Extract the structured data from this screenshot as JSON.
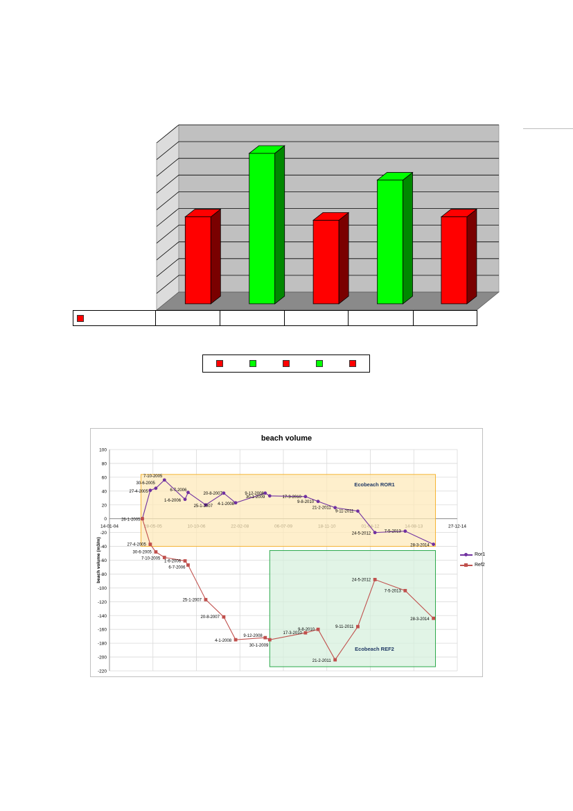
{
  "bar_chart": {
    "chart_data": {
      "type": "bar",
      "categories": [
        "",
        "",
        "",
        "",
        ""
      ],
      "values": [
        5.2,
        9.0,
        5.0,
        7.4,
        5.2
      ],
      "colors": [
        "#ff0000",
        "#00ff00",
        "#ff0000",
        "#00ff00",
        "#ff0000"
      ],
      "grid": true,
      "gridlines": 10
    }
  },
  "volume_chart": {
    "chart_data": {
      "type": "line",
      "title": "beach volume",
      "ylabel": "beach volume (m3/m)",
      "ylim": [
        -220,
        100
      ],
      "yticks": [
        100,
        80,
        60,
        40,
        20,
        0,
        -20,
        -40,
        -60,
        -80,
        -100,
        -120,
        -140,
        -160,
        -180,
        -200,
        -220
      ],
      "xlim": [
        "2004-01-14",
        "2014-12-27"
      ],
      "xtick_labels": [
        "14-01-04",
        "28-05-05",
        "10-10-06",
        "22-02-08",
        "06-07-09",
        "18-11-10",
        "01-04-12",
        "14-08-13",
        "27-12-14"
      ],
      "xtick_dates": [
        "2004-01-14",
        "2005-05-28",
        "2006-10-10",
        "2008-02-22",
        "2009-07-06",
        "2010-11-18",
        "2012-04-01",
        "2013-08-14",
        "2014-12-27"
      ],
      "legend_position": "right",
      "series": [
        {
          "name": "Ror1",
          "color": "#7030a0",
          "marker": "circle",
          "points": [
            {
              "x": "2005-01-26",
              "y": 0,
              "label": "26-1-2005"
            },
            {
              "x": "2005-04-27",
              "y": 41,
              "label": "27-4-2005"
            },
            {
              "x": "2005-06-30",
              "y": 44,
              "label": "30-6-2005"
            },
            {
              "x": "2005-10-07",
              "y": 56,
              "label": "7-10-2005"
            },
            {
              "x": "2006-06-01",
              "y": 28,
              "label": "1-6-2006"
            },
            {
              "x": "2006-07-06",
              "y": 38,
              "label": "6-7-2006"
            },
            {
              "x": "2007-01-25",
              "y": 20,
              "label": "25-1-2007"
            },
            {
              "x": "2007-08-20",
              "y": 37,
              "label": "20-8-2007"
            },
            {
              "x": "2008-01-04",
              "y": 23,
              "label": "4-1-2008"
            },
            {
              "x": "2008-12-09",
              "y": 37,
              "label": "9-12-2008"
            },
            {
              "x": "2009-01-30",
              "y": 33,
              "label": "30-1-2009"
            },
            {
              "x": "2010-03-17",
              "y": 32,
              "label": "17-3-2010"
            },
            {
              "x": "2010-08-09",
              "y": 25,
              "label": "9-8-2010"
            },
            {
              "x": "2011-02-21",
              "y": 16,
              "label": "21-2-2011"
            },
            {
              "x": "2011-11-09",
              "y": 11,
              "label": "9-11-2011"
            },
            {
              "x": "2012-05-24",
              "y": -20,
              "label": "24-5-2012"
            },
            {
              "x": "2013-05-07",
              "y": -18,
              "label": "7-5-2013"
            },
            {
              "x": "2014-03-28",
              "y": -37,
              "label": "28-3-2014"
            }
          ]
        },
        {
          "name": "Ref2",
          "color": "#c0504d",
          "marker": "square",
          "points": [
            {
              "x": "2005-01-26",
              "y": 0,
              "label": "26-1-2005"
            },
            {
              "x": "2005-04-27",
              "y": -37,
              "label": "27-4-2005"
            },
            {
              "x": "2005-06-30",
              "y": -48,
              "label": "30-6-2005"
            },
            {
              "x": "2005-10-07",
              "y": -56,
              "label": "7-10-2005"
            },
            {
              "x": "2006-06-01",
              "y": -61,
              "label": "1-6-2006"
            },
            {
              "x": "2006-07-06",
              "y": -67,
              "label": "6-7-2006"
            },
            {
              "x": "2007-01-25",
              "y": -117,
              "label": "25-1-2007"
            },
            {
              "x": "2007-08-20",
              "y": -142,
              "label": "20-8-2007"
            },
            {
              "x": "2008-01-04",
              "y": -175,
              "label": "4-1-2008"
            },
            {
              "x": "2008-12-09",
              "y": -172,
              "label": "9-12-2008"
            },
            {
              "x": "2009-01-30",
              "y": -175,
              "label": "30-1-2009"
            },
            {
              "x": "2010-03-17",
              "y": -165,
              "label": "17-3-2010"
            },
            {
              "x": "2010-08-09",
              "y": -160,
              "label": "9-8-2010"
            },
            {
              "x": "2011-02-21",
              "y": -204,
              "label": "21-2-2011"
            },
            {
              "x": "2011-11-09",
              "y": -156,
              "label": "9-11-2011"
            },
            {
              "x": "2012-05-24",
              "y": -88,
              "label": "24-5-2012"
            },
            {
              "x": "2013-05-07",
              "y": -104,
              "label": "7-5-2013"
            },
            {
              "x": "2014-03-28",
              "y": -144,
              "label": "28-3-2014"
            }
          ]
        }
      ],
      "regions": [
        {
          "label": "Ecobeach ROR1",
          "x0": "2005-01-10",
          "x1": "2014-04-20",
          "y0": -40,
          "y1": 64,
          "fill": "#fde9b9",
          "stroke": "#f5b331"
        },
        {
          "label": "Ecobeach REF2",
          "x0": "2009-01-30",
          "x1": "2014-04-20",
          "y0": -214,
          "y1": -46,
          "fill": "#d6f0dc",
          "stroke": "#2aa84a"
        }
      ]
    }
  }
}
